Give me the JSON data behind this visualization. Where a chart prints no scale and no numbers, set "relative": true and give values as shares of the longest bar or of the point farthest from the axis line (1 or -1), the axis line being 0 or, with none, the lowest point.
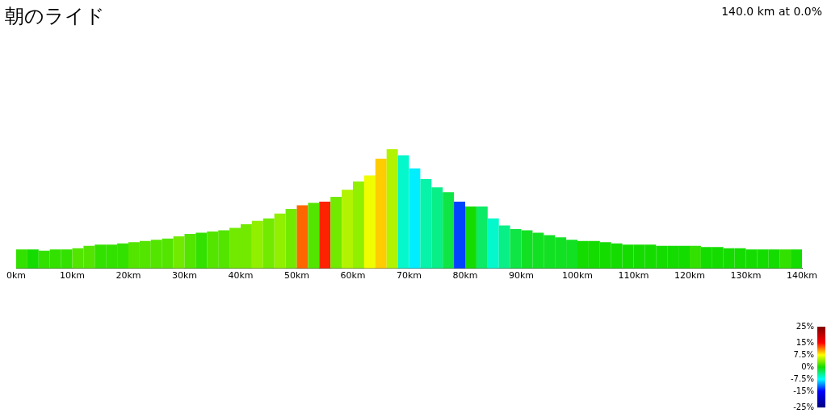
{
  "chart_data": {
    "type": "bar",
    "title": "朝のライド",
    "subtitle": "140.0 km at 0.0%",
    "relative": true,
    "x": [
      1,
      3,
      5,
      7,
      9,
      11,
      13,
      15,
      17,
      19,
      21,
      23,
      25,
      27,
      29,
      31,
      33,
      35,
      37,
      39,
      41,
      43,
      45,
      47,
      49,
      51,
      53,
      55,
      57,
      59,
      61,
      63,
      65,
      67,
      69,
      71,
      73,
      75,
      77,
      79,
      81,
      83,
      85,
      87,
      89,
      91,
      93,
      95,
      97,
      99,
      101,
      103,
      105,
      107,
      109,
      111,
      113,
      115,
      117,
      119,
      121,
      123,
      125,
      127,
      129,
      131,
      133,
      135,
      137,
      139
    ],
    "values": [
      0.16,
      0.16,
      0.15,
      0.16,
      0.16,
      0.17,
      0.19,
      0.2,
      0.2,
      0.21,
      0.22,
      0.23,
      0.24,
      0.25,
      0.27,
      0.29,
      0.3,
      0.31,
      0.32,
      0.34,
      0.37,
      0.4,
      0.42,
      0.46,
      0.5,
      0.53,
      0.55,
      0.56,
      0.6,
      0.66,
      0.73,
      0.78,
      0.92,
      1,
      0.95,
      0.84,
      0.75,
      0.68,
      0.64,
      0.56,
      0.52,
      0.52,
      0.42,
      0.36,
      0.33,
      0.32,
      0.3,
      0.28,
      0.26,
      0.24,
      0.23,
      0.23,
      0.22,
      0.21,
      0.2,
      0.2,
      0.2,
      0.19,
      0.19,
      0.19,
      0.19,
      0.18,
      0.18,
      0.17,
      0.17,
      0.16,
      0.16,
      0.16,
      0.16,
      0.16
    ],
    "cvalues": [
      1,
      0,
      1,
      1,
      1,
      2,
      2,
      1,
      1,
      1,
      2,
      2,
      2,
      2,
      3,
      2,
      1,
      2,
      2,
      3,
      3,
      4,
      3,
      4,
      3,
      12,
      2,
      14,
      3,
      5,
      4,
      7,
      9,
      5,
      -6,
      -8,
      -5,
      -4,
      -2,
      -13,
      0,
      -3,
      -6,
      -4,
      -2,
      -1,
      -1,
      -1,
      -1,
      -1,
      0,
      0,
      0,
      0,
      0,
      0,
      0,
      0,
      0,
      0,
      1,
      0,
      0,
      0,
      0,
      0,
      0,
      0,
      1,
      0
    ],
    "xlim": [
      0,
      140
    ],
    "xticks": [
      {
        "value": 0,
        "label": "0km"
      },
      {
        "value": 10,
        "label": "10km"
      },
      {
        "value": 20,
        "label": "20km"
      },
      {
        "value": 30,
        "label": "30km"
      },
      {
        "value": 40,
        "label": "40km"
      },
      {
        "value": 50,
        "label": "50km"
      },
      {
        "value": 60,
        "label": "60km"
      },
      {
        "value": 70,
        "label": "70km"
      },
      {
        "value": 80,
        "label": "80km"
      },
      {
        "value": 90,
        "label": "90km"
      },
      {
        "value": 100,
        "label": "100km"
      },
      {
        "value": 110,
        "label": "110km"
      },
      {
        "value": 120,
        "label": "120km"
      },
      {
        "value": 130,
        "label": "130km"
      },
      {
        "value": 140,
        "label": "140km"
      }
    ],
    "clim": [
      -25,
      25
    ],
    "cticks": [
      {
        "value": 25,
        "label": "25%"
      },
      {
        "value": 15,
        "label": "15%"
      },
      {
        "value": 7.5,
        "label": "7.5%"
      },
      {
        "value": 0,
        "label": "0%"
      },
      {
        "value": -7.5,
        "label": "-7.5%"
      },
      {
        "value": -15,
        "label": "-15%"
      },
      {
        "value": -25,
        "label": "-25%"
      }
    ]
  }
}
